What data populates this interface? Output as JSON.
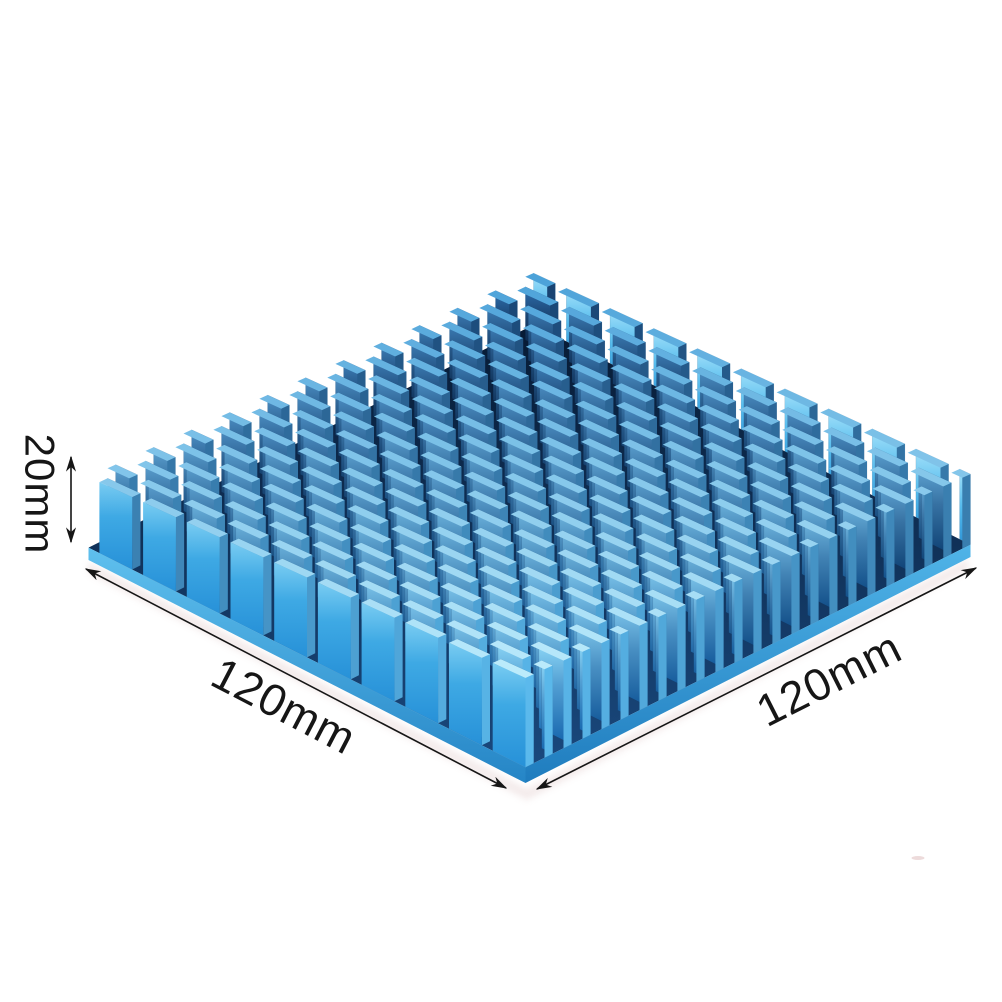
{
  "page": {
    "background_color": "#ffffff"
  },
  "annotations": {
    "ink_color": "#161616",
    "height": {
      "label": "20mm"
    },
    "width_left": {
      "label": "120mm"
    },
    "width_right": {
      "label": "120mm"
    }
  },
  "heatsink": {
    "size_mm": {
      "width": 120,
      "depth": 120,
      "height": 20
    },
    "fin_rows": 24,
    "fin_segments_per_row": 10,
    "palette": {
      "face_top_light": "#8fd9f8",
      "face_top_dark": "#2f6fae",
      "face_bottom_light": "#1565ad",
      "face_bottom_dark": "#071c3a",
      "edge_light": "#bdecfc",
      "edge_dark": "#4aa0d8",
      "end_light": "#5cbbee",
      "end_dark": "#16406f",
      "outer_top": "#a5e2fa",
      "outer_mid": "#55bbed",
      "outer_bottom": "#2d94d6",
      "left_top": "#79ccf2",
      "left_mid": "#3ea9e4",
      "left_bottom": "#2791d8",
      "base_top_front": "#1a4a80",
      "base_top_back": "#061830",
      "base_left_top": "#5fc0ee",
      "base_left_bottom": "#2585c6",
      "base_right_top": "#50b4e8",
      "base_right_bottom": "#1f7cbe",
      "shadow": "#d9bcbc"
    }
  },
  "artifacts": {
    "watermark_color": "#debdbd"
  }
}
